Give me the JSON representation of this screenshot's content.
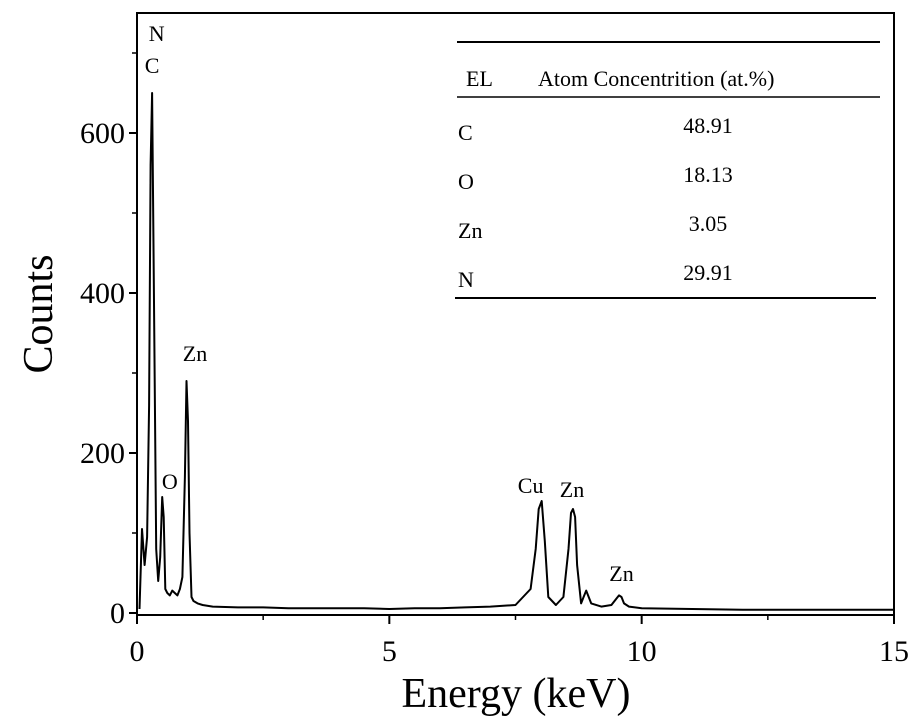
{
  "chart_data": {
    "type": "line",
    "xlabel": "Energy (keV)",
    "ylabel": "Counts",
    "xlim": [
      0,
      15
    ],
    "ylim": [
      0,
      750
    ],
    "x_ticks": [
      "0",
      "5",
      "10",
      "15"
    ],
    "y_ticks": [
      "0",
      "200",
      "400",
      "600"
    ],
    "grid": false,
    "series": [
      {
        "x": [
          0.05,
          0.1,
          0.15,
          0.2,
          0.24,
          0.27,
          0.3,
          0.33,
          0.38,
          0.42,
          0.46,
          0.5,
          0.53,
          0.56,
          0.6,
          0.65,
          0.7,
          0.75,
          0.8,
          0.85,
          0.9,
          0.95,
          0.98,
          1.01,
          1.04,
          1.08,
          1.12,
          1.2,
          1.3,
          1.5,
          2.0,
          2.5,
          3.0,
          3.5,
          4.0,
          4.5,
          5.0,
          5.5,
          6.0,
          6.5,
          7.0,
          7.5,
          7.8,
          7.9,
          7.96,
          8.02,
          8.08,
          8.15,
          8.3,
          8.45,
          8.55,
          8.6,
          8.64,
          8.68,
          8.72,
          8.8,
          8.85,
          8.9,
          9.0,
          9.2,
          9.4,
          9.5,
          9.55,
          9.6,
          9.65,
          9.75,
          10.0,
          11.0,
          12.0,
          13.0,
          14.0,
          15.0
        ],
        "y": [
          5,
          105,
          60,
          95,
          260,
          560,
          650,
          430,
          80,
          40,
          70,
          145,
          120,
          30,
          25,
          22,
          28,
          25,
          22,
          30,
          45,
          170,
          290,
          240,
          100,
          20,
          15,
          12,
          10,
          8,
          7,
          7,
          6,
          6,
          6,
          6,
          5,
          6,
          6,
          7,
          8,
          10,
          30,
          80,
          130,
          140,
          90,
          20,
          10,
          20,
          80,
          125,
          130,
          120,
          60,
          12,
          20,
          28,
          12,
          8,
          10,
          18,
          22,
          20,
          12,
          8,
          6,
          5,
          4,
          4,
          4,
          4
        ]
      }
    ],
    "annotations": [
      {
        "text": "N",
        "x": 0.39,
        "y": 715
      },
      {
        "text": "C",
        "x": 0.3,
        "y": 675
      },
      {
        "text": "O",
        "x": 0.65,
        "y": 155
      },
      {
        "text": "Zn",
        "x": 1.15,
        "y": 315
      },
      {
        "text": "Cu",
        "x": 7.8,
        "y": 150
      },
      {
        "text": "Zn",
        "x": 8.62,
        "y": 145
      },
      {
        "text": "Zn",
        "x": 9.6,
        "y": 40
      }
    ],
    "table": {
      "headers": [
        "EL",
        "Atom Concentrition (at.%)"
      ],
      "rows": [
        [
          "C",
          "48.91"
        ],
        [
          "O",
          "18.13"
        ],
        [
          "Zn",
          "3.05"
        ],
        [
          "N",
          "29.91"
        ]
      ]
    }
  }
}
